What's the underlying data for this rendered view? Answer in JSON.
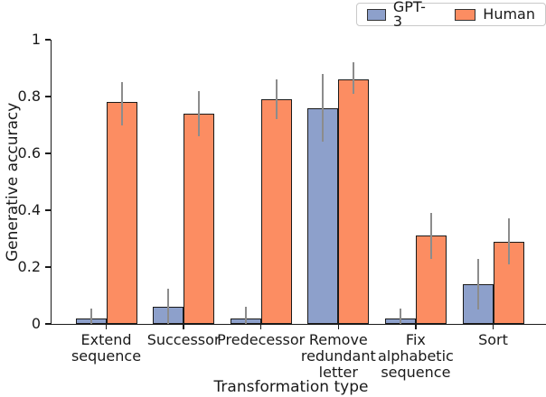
{
  "chart_data": {
    "type": "bar",
    "title": "",
    "xlabel": "Transformation type",
    "ylabel": "Generative accuracy",
    "ylim": [
      0,
      1
    ],
    "yticks": [
      0,
      0.2,
      0.4,
      0.6,
      0.8,
      1
    ],
    "ytick_labels": [
      "0",
      "0.2",
      "0.4",
      "0.6",
      "0.8",
      "1"
    ],
    "grid": false,
    "legend_position": "top-right",
    "error_bars": true,
    "categories": [
      "Extend\nsequence",
      "Successor",
      "Predecessor",
      "Remove\nredundant\nletter",
      "Fix\nalphabetic\nsequence",
      "Sort"
    ],
    "series": [
      {
        "name": "GPT-3",
        "color": "#8da0cb",
        "values": [
          0.02,
          0.06,
          0.02,
          0.76,
          0.02,
          0.14
        ],
        "error_low": [
          0.0,
          0.0,
          0.0,
          0.64,
          0.0,
          0.05
        ],
        "error_high": [
          0.055,
          0.125,
          0.06,
          0.88,
          0.055,
          0.23
        ]
      },
      {
        "name": "Human",
        "color": "#fc8d62",
        "values": [
          0.78,
          0.74,
          0.79,
          0.86,
          0.31,
          0.29
        ],
        "error_low": [
          0.7,
          0.66,
          0.72,
          0.81,
          0.23,
          0.21
        ],
        "error_high": [
          0.85,
          0.82,
          0.86,
          0.92,
          0.39,
          0.37
        ]
      }
    ],
    "style": {
      "bar_edge_color": "#1a1a1a",
      "error_bar_color": "#8c8c8c",
      "axis_color": "#1a1a1a",
      "background": "#ffffff"
    }
  }
}
